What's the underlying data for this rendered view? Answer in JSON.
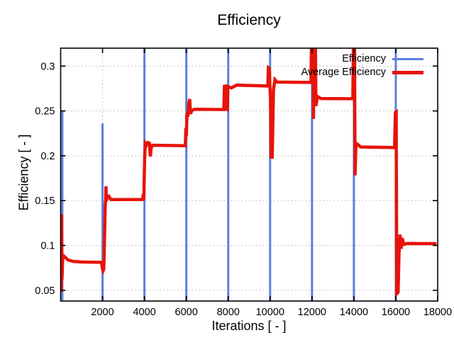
{
  "figure": {
    "background": "#ffffff",
    "border_color": "#000000"
  },
  "chart_data": {
    "type": "line",
    "title": "Efficiency",
    "xlabel": "Iterations [ - ]",
    "ylabel": "Efficiency [ - ]",
    "xlim": [
      0,
      18000
    ],
    "ylim": [
      0.038,
      0.32
    ],
    "xticks": {
      "values": [
        2000,
        4000,
        6000,
        8000,
        10000,
        12000,
        14000,
        16000,
        18000
      ],
      "labels": [
        "2000",
        "4000",
        "6000",
        "8000",
        "10000",
        "12000",
        "14000",
        "16000",
        "18000"
      ]
    },
    "yticks": {
      "values": [
        0.05,
        0.1,
        0.15,
        0.2,
        0.25,
        0.3
      ],
      "labels": [
        "0.05",
        "0.1",
        "0.15",
        "0.2",
        "0.25",
        "0.3"
      ]
    },
    "grid": {
      "show": true,
      "style": "dotted",
      "color": "#b4b4b4"
    },
    "legend": {
      "position": "top-right-inside",
      "entries": [
        {
          "label": "Efficiency",
          "color": "#5b7fdd",
          "line_width": 3
        },
        {
          "label": "Average Efficiency",
          "color": "#e81309",
          "line_width": 5
        }
      ]
    },
    "series": [
      {
        "name": "Efficiency",
        "style": "vertical-spikes-plus-hidden-baseline",
        "color": "#5b7fdd",
        "width": 3,
        "note": "instantaneous efficiency: follows the average line, with large reset spikes every 2000 iterations",
        "spikes": [
          {
            "x": 80,
            "y0": 0.038,
            "y1": 0.25
          },
          {
            "x": 2000,
            "y0": 0.038,
            "y1": 0.236
          },
          {
            "x": 4000,
            "y0": 0.038,
            "y1": 0.32
          },
          {
            "x": 6000,
            "y0": 0.038,
            "y1": 0.32
          },
          {
            "x": 8000,
            "y0": 0.038,
            "y1": 0.32
          },
          {
            "x": 10000,
            "y0": 0.038,
            "y1": 0.32
          },
          {
            "x": 12000,
            "y0": 0.038,
            "y1": 0.32
          },
          {
            "x": 14000,
            "y0": 0.038,
            "y1": 0.32
          },
          {
            "x": 16000,
            "y0": 0.038,
            "y1": 0.32
          }
        ]
      },
      {
        "name": "Average Efficiency",
        "style": "line",
        "color": "#e81309",
        "width": 4.5,
        "plateaus": {
          "0-2000": 0.081,
          "2000-4000": 0.151,
          "4000-6000": 0.211,
          "6000-8000": 0.2515,
          "8000-10000": 0.2775,
          "10000-12000": 0.282,
          "12000-14000": 0.2635,
          "14000-16000": 0.209,
          "16000-18000": 0.102
        },
        "points": [
          [
            20,
            0.131
          ],
          [
            30,
            0.048
          ],
          [
            45,
            0.135
          ],
          [
            65,
            0.062
          ],
          [
            100,
            0.089
          ],
          [
            200,
            0.0872
          ],
          [
            350,
            0.0838
          ],
          [
            600,
            0.0822
          ],
          [
            1000,
            0.0815
          ],
          [
            1950,
            0.0812
          ],
          [
            1990,
            0.0745
          ],
          [
            2030,
            0.0718
          ],
          [
            2060,
            0.0735
          ],
          [
            2090,
            0.103
          ],
          [
            2130,
            0.146
          ],
          [
            2150,
            0.1505
          ],
          [
            2165,
            0.166
          ],
          [
            2185,
            0.1495
          ],
          [
            2230,
            0.1538
          ],
          [
            2300,
            0.1548
          ],
          [
            2400,
            0.1512
          ],
          [
            3920,
            0.1513
          ],
          [
            3950,
            0.1575
          ],
          [
            3970,
            0.1513
          ],
          [
            4010,
            0.1965
          ],
          [
            4040,
            0.2135
          ],
          [
            4090,
            0.2118
          ],
          [
            4150,
            0.2148
          ],
          [
            4240,
            0.214
          ],
          [
            4280,
            0.1992
          ],
          [
            4320,
            0.2088
          ],
          [
            4400,
            0.2118
          ],
          [
            5950,
            0.2112
          ],
          [
            5980,
            0.2312
          ],
          [
            6000,
            0.2215
          ],
          [
            6030,
            0.2478
          ],
          [
            6080,
            0.2438
          ],
          [
            6120,
            0.2582
          ],
          [
            6160,
            0.2632
          ],
          [
            6200,
            0.2468
          ],
          [
            6260,
            0.2505
          ],
          [
            6400,
            0.2518
          ],
          [
            7790,
            0.2516
          ],
          [
            7820,
            0.2775
          ],
          [
            7900,
            0.2778
          ],
          [
            7925,
            0.2518
          ],
          [
            7955,
            0.2515
          ],
          [
            7985,
            0.2772
          ],
          [
            8150,
            0.2758
          ],
          [
            8400,
            0.2788
          ],
          [
            9890,
            0.2778
          ],
          [
            9920,
            0.2982
          ],
          [
            9960,
            0.2975
          ],
          [
            9990,
            0.2772
          ],
          [
            10020,
            0.2625
          ],
          [
            10045,
            0.1972
          ],
          [
            10075,
            0.2058
          ],
          [
            10100,
            0.1968
          ],
          [
            10160,
            0.2738
          ],
          [
            10230,
            0.2848
          ],
          [
            10330,
            0.2822
          ],
          [
            11950,
            0.2818
          ],
          [
            11980,
            0.33
          ],
          [
            12050,
            0.33
          ],
          [
            12070,
            0.2412
          ],
          [
            12095,
            0.33
          ],
          [
            12160,
            0.33
          ],
          [
            12185,
            0.2555
          ],
          [
            12260,
            0.2662
          ],
          [
            12420,
            0.2638
          ],
          [
            13950,
            0.2636
          ],
          [
            13980,
            0.33
          ],
          [
            14030,
            0.33
          ],
          [
            14055,
            0.1782
          ],
          [
            14100,
            0.2138
          ],
          [
            14180,
            0.2128
          ],
          [
            14320,
            0.2098
          ],
          [
            15940,
            0.2092
          ],
          [
            15980,
            0.2482
          ],
          [
            16020,
            0.2488
          ],
          [
            16045,
            0.0462
          ],
          [
            16110,
            0.0478
          ],
          [
            16150,
            0.0895
          ],
          [
            16200,
            0.1122
          ],
          [
            16250,
            0.0962
          ],
          [
            16300,
            0.1082
          ],
          [
            16380,
            0.1012
          ],
          [
            16550,
            0.1022
          ],
          [
            17940,
            0.102
          ]
        ]
      }
    ]
  }
}
